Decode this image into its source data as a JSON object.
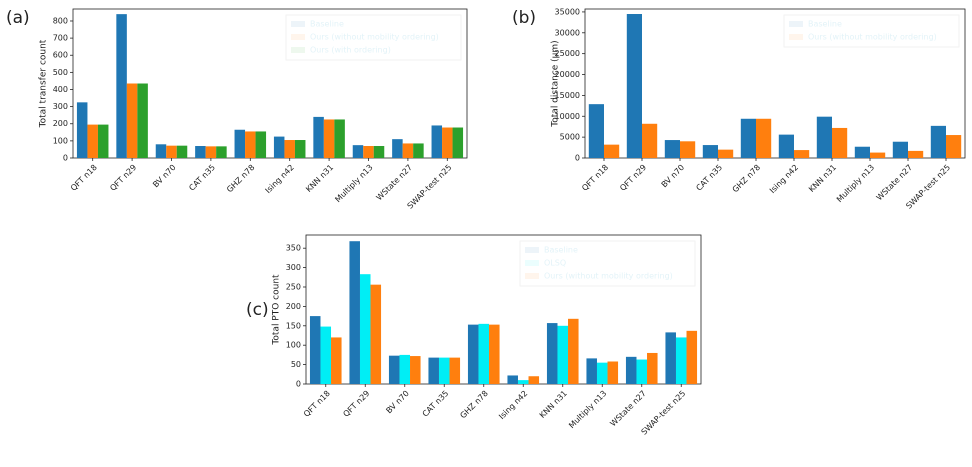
{
  "chart_data": [
    {
      "type": "bar",
      "panel_label": "(a)",
      "ylabel": "Total transfer count",
      "categories": [
        "QFT n18",
        "QFT n29",
        "BV n70",
        "CAT n35",
        "GHZ n78",
        "Ising n42",
        "KNN n31",
        "Multiply n13",
        "WState n27",
        "SWAP-test n25"
      ],
      "series": [
        {
          "name": "Baseline",
          "color": "#1f77b4",
          "values": [
            325,
            840,
            80,
            70,
            165,
            125,
            240,
            75,
            110,
            190
          ]
        },
        {
          "name": "Ours (without mobility ordering)",
          "color": "#ff7f0e",
          "values": [
            195,
            435,
            72,
            68,
            155,
            105,
            225,
            70,
            85,
            178
          ]
        },
        {
          "name": "Ours (with ordering)",
          "color": "#2ca02c",
          "values": [
            195,
            435,
            72,
            68,
            155,
            105,
            225,
            70,
            85,
            178
          ]
        }
      ],
      "ylim": [
        0,
        870
      ],
      "yticks": [
        0,
        100,
        200,
        300,
        400,
        500,
        600,
        700,
        800
      ],
      "legend": "upper right"
    },
    {
      "type": "bar",
      "panel_label": "(b)",
      "ylabel": "Total distance (μm)",
      "categories": [
        "QFT n18",
        "QFT n29",
        "BV n70",
        "CAT n35",
        "GHZ n78",
        "Ising n42",
        "KNN n31",
        "Multiply n13",
        "WState n27",
        "SWAP-test n25"
      ],
      "series": [
        {
          "name": "Baseline",
          "color": "#1f77b4",
          "values": [
            12900,
            34500,
            4300,
            3100,
            9400,
            5600,
            9900,
            2700,
            3900,
            7700
          ]
        },
        {
          "name": "Ours (without mobility ordering)",
          "color": "#ff7f0e",
          "values": [
            3200,
            8200,
            4000,
            2000,
            9400,
            1900,
            7200,
            1300,
            1700,
            5500
          ]
        }
      ],
      "ylim": [
        0,
        35700
      ],
      "yticks": [
        0,
        5000,
        10000,
        15000,
        20000,
        25000,
        30000,
        35000
      ],
      "legend": "upper right"
    },
    {
      "type": "bar",
      "panel_label": "(c)",
      "ylabel": "Total PTO count",
      "categories": [
        "QFT n18",
        "QFT n29",
        "BV n70",
        "CAT n35",
        "GHZ n78",
        "Ising n42",
        "KNN n31",
        "Multiply n13",
        "WState n27",
        "SWAP-test n25"
      ],
      "series": [
        {
          "name": "Baseline",
          "color": "#1f77b4",
          "values": [
            175,
            368,
            73,
            68,
            153,
            22,
            157,
            66,
            70,
            133
          ]
        },
        {
          "name": "OLSQ",
          "color": "#00eef5",
          "values": [
            148,
            283,
            75,
            68,
            155,
            10,
            150,
            55,
            63,
            120
          ]
        },
        {
          "name": "Ours (without mobility ordering)",
          "color": "#ff7f0e",
          "values": [
            120,
            256,
            72,
            68,
            153,
            20,
            168,
            58,
            80,
            137
          ]
        }
      ],
      "ylim": [
        0,
        384
      ],
      "yticks": [
        0,
        50,
        100,
        150,
        200,
        250,
        300,
        350
      ],
      "legend": "upper right"
    }
  ]
}
